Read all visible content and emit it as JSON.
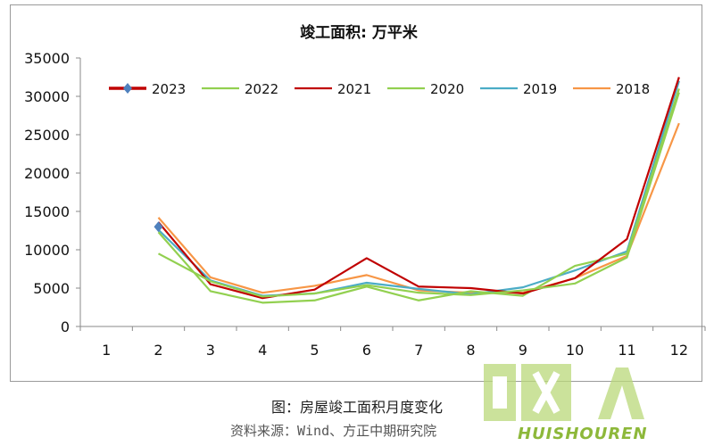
{
  "chart_data": {
    "type": "line",
    "title": "竣工面积: 万平米",
    "categories": [
      "1",
      "2",
      "3",
      "4",
      "5",
      "6",
      "7",
      "8",
      "9",
      "10",
      "11",
      "12"
    ],
    "ylim": [
      0,
      35000
    ],
    "yticks": [
      "0",
      "5000",
      "10000",
      "15000",
      "20000",
      "25000",
      "30000",
      "35000"
    ],
    "legend_position": "top",
    "grid": false,
    "series": [
      {
        "name": "2023",
        "color": "#c00000",
        "marker": "diamond",
        "marker_color": "#4f81bd",
        "values": [
          null,
          13000,
          null,
          null,
          null,
          null,
          null,
          null,
          null,
          null,
          null,
          null
        ]
      },
      {
        "name": "2022",
        "color": "#92d050",
        "values": [
          null,
          9500,
          5900,
          3900,
          4300,
          5400,
          4400,
          4100,
          4700,
          5600,
          9000,
          30500
        ]
      },
      {
        "name": "2021",
        "color": "#c00000",
        "values": [
          null,
          13600,
          5500,
          3700,
          4800,
          8900,
          5200,
          5000,
          4300,
          6300,
          11400,
          32500
        ]
      },
      {
        "name": "2020",
        "color": "#92d050",
        "values": [
          null,
          12300,
          4600,
          3100,
          3400,
          5200,
          3400,
          4600,
          4000,
          7900,
          9500,
          31000
        ]
      },
      {
        "name": "2019",
        "color": "#4bacc6",
        "values": [
          null,
          12600,
          6000,
          4000,
          4300,
          5700,
          4900,
          4200,
          5100,
          7300,
          9800,
          32000
        ]
      },
      {
        "name": "2018",
        "color": "#f79646",
        "values": [
          null,
          14200,
          6400,
          4400,
          5300,
          6700,
          4700,
          4400,
          4400,
          6300,
          9200,
          26500
        ]
      }
    ]
  },
  "caption": "图：房屋竣工面积月度变化",
  "source": "资料来源：Wind、方正中期研究院",
  "watermark": {
    "cn": "回收人",
    "en": "HUISHOUREN"
  }
}
